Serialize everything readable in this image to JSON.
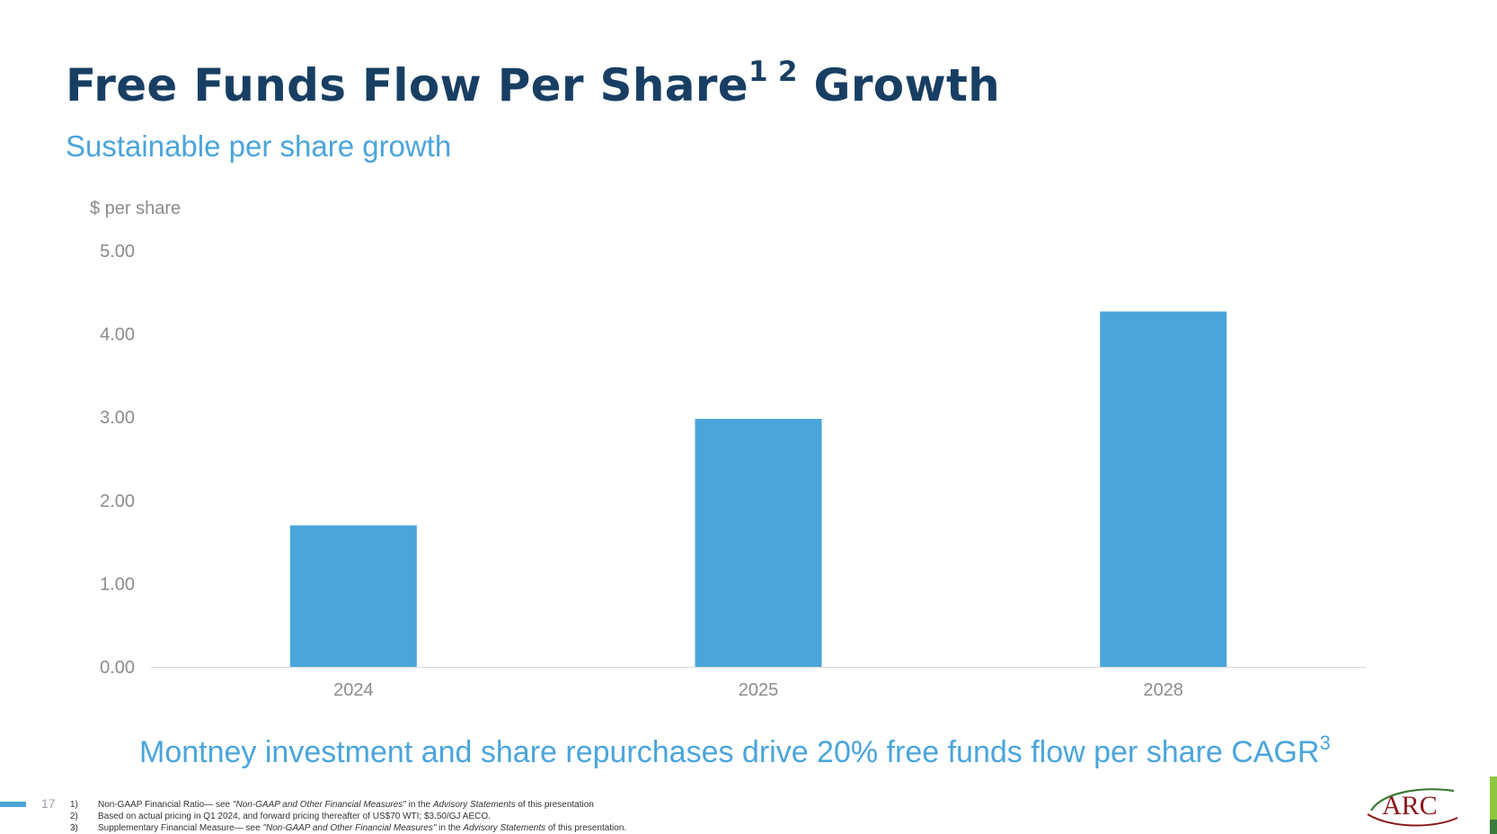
{
  "header": {
    "title": "Free Funds Flow Per Share",
    "title_sup": "1 2",
    "title_suffix": " Growth",
    "subtitle": "Sustainable per share growth"
  },
  "chart_data": {
    "type": "bar",
    "ylabel": "$ per share",
    "categories": [
      "2024",
      "2025",
      "2028"
    ],
    "values": [
      1.7,
      2.98,
      4.27
    ],
    "ylim": [
      0,
      5
    ],
    "yticks": [
      "0.00",
      "1.00",
      "2.00",
      "3.00",
      "4.00",
      "5.00"
    ],
    "grid": false,
    "bar_color": "#4aa5db"
  },
  "tagline": {
    "text": "Montney investment and share repurchases drive 20% free funds flow per share CAGR",
    "sup": "3"
  },
  "footer": {
    "page_number": "17",
    "notes": [
      {
        "num": "1)",
        "a": "Non-GAAP Financial Ratio— see ",
        "b": "\"Non-GAAP and Other Financial Measures\"",
        "c": " in the ",
        "d": "Advisory Statements",
        "e": " of this presentation"
      },
      {
        "num": "2)",
        "a": "Based on actual pricing in Q1 2024, and forward pricing thereafter of US$70 WTI; $3.50/GJ AECO.",
        "b": "",
        "c": "",
        "d": "",
        "e": ""
      },
      {
        "num": "3)",
        "a": "Supplementary Financial Measure— see ",
        "b": "\"Non-GAAP and Other Financial Measures\"",
        "c": " in the ",
        "d": "Advisory Statements",
        "e": " of this presentation."
      }
    ],
    "logo_text": "ARC"
  },
  "colors": {
    "title": "#183f63",
    "accent": "#4aa5db",
    "green": "#8dc63f"
  }
}
